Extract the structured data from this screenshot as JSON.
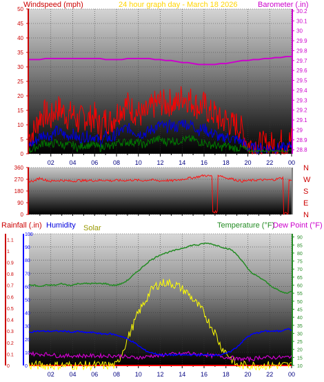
{
  "header": {
    "wind_label": "Windspeed (mph)",
    "title": "24 hour graph day - March 18 2026",
    "baro_label": "Barometer (.in)"
  },
  "bottom_header": {
    "rain_label": "Rainfall (.in)",
    "humidity_label": "Humidity",
    "solar_label": "Solar",
    "temp_label": "Temperature (°F)",
    "dew_label": "Dew Point (°F)"
  },
  "colors": {
    "wind_label": "#cc0000",
    "title": "#ffd400",
    "baro": "#cc00cc",
    "wind_gust": "#ff0000",
    "wind_avg": "#0000dd",
    "wind_low": "#007700",
    "direction": "#ff1010",
    "temperature": "#228b22",
    "humidity": "#0000ff",
    "dew_point": "#cc00cc",
    "solar": "#ffff00",
    "solar_label": "#999900",
    "rain": "#ff0000",
    "temp_axis": "#228b22",
    "humidity_axis": "#0000ff"
  },
  "chart_data": [
    {
      "id": "wind_baro",
      "type": "line",
      "title": "24 hour graph day - March 18 2026",
      "ylabel": "Windspeed (mph)",
      "ylabel_right": "Barometer (.in)",
      "x_tick_labels": [
        "02",
        "04",
        "06",
        "08",
        "10",
        "12",
        "14",
        "16",
        "18",
        "20",
        "22",
        "00"
      ],
      "y_ticks": [
        "0",
        "5",
        "10",
        "15",
        "20",
        "25",
        "30",
        "35",
        "40",
        "45",
        "50"
      ],
      "ylim": [
        0,
        50
      ],
      "y2_ticks": [
        "28.8",
        "28.9",
        "29",
        "29.1",
        "29.2",
        "29.3",
        "29.4",
        "29.5",
        "29.6",
        "29.7",
        "29.8",
        "29.9",
        "30",
        "30.1",
        "30.2"
      ],
      "y2lim": [
        28.76,
        30.22
      ],
      "x": [
        0,
        0.5,
        1,
        1.5,
        2,
        2.5,
        3,
        3.5,
        4,
        4.5,
        5,
        5.5,
        6,
        6.5,
        7,
        7.5,
        8,
        8.5,
        9,
        9.5,
        10,
        10.5,
        11,
        11.5,
        12,
        12.5,
        13,
        13.5,
        14,
        14.5,
        15,
        15.5,
        16,
        16.5,
        17,
        17.5,
        18,
        18.5,
        19,
        19.5,
        20,
        20.5,
        21,
        21.5,
        22,
        22.5,
        23,
        23.5,
        24
      ],
      "series": [
        {
          "name": "Gust",
          "values": [
            6,
            8,
            13,
            14,
            12,
            16,
            15,
            13,
            14,
            11,
            13,
            12,
            13,
            9,
            12,
            11,
            14,
            16,
            17,
            15,
            14,
            13,
            15,
            17,
            18,
            17,
            18,
            17,
            20,
            19,
            18,
            16,
            17,
            14,
            14,
            11,
            12,
            10,
            10,
            8,
            3,
            3,
            3,
            3,
            3,
            3,
            4,
            3,
            5
          ]
        },
        {
          "name": "Average",
          "values": [
            3,
            4,
            6,
            7,
            6,
            8,
            7,
            6,
            7,
            5,
            6,
            6,
            6,
            4,
            6,
            5,
            7,
            8,
            9,
            8,
            7,
            7,
            8,
            9,
            10,
            9,
            10,
            9,
            11,
            10,
            10,
            8,
            9,
            7,
            7,
            5,
            6,
            5,
            5,
            4,
            2,
            2,
            2,
            2,
            2,
            2,
            2,
            2,
            3
          ]
        },
        {
          "name": "Low",
          "values": [
            1,
            2,
            3,
            4,
            3,
            4,
            3,
            3,
            3,
            2,
            3,
            3,
            3,
            2,
            3,
            2,
            4,
            4,
            4,
            4,
            4,
            3,
            4,
            5,
            5,
            4,
            5,
            4,
            5,
            5,
            5,
            4,
            4,
            3,
            3,
            2,
            3,
            2,
            2,
            2,
            1,
            1,
            1,
            1,
            1,
            1,
            1,
            1,
            1
          ]
        },
        {
          "name": "Barometer",
          "values": [
            29.71,
            29.71,
            29.71,
            29.72,
            29.72,
            29.72,
            29.72,
            29.72,
            29.72,
            29.72,
            29.72,
            29.72,
            29.72,
            29.72,
            29.71,
            29.71,
            29.71,
            29.71,
            29.72,
            29.72,
            29.72,
            29.72,
            29.72,
            29.71,
            29.71,
            29.7,
            29.7,
            29.69,
            29.68,
            29.68,
            29.67,
            29.66,
            29.66,
            29.66,
            29.66,
            29.67,
            29.67,
            29.68,
            29.69,
            29.7,
            29.7,
            29.71,
            29.71,
            29.72,
            29.72,
            29.73,
            29.73,
            29.74,
            29.74
          ]
        }
      ]
    },
    {
      "id": "direction",
      "type": "line",
      "y_ticks": [
        "0",
        "90",
        "180",
        "270",
        "360"
      ],
      "ylim": [
        0,
        360
      ],
      "compass_labels": [
        "N",
        "W",
        "S",
        "E",
        "N"
      ],
      "x": [
        0,
        0.5,
        1,
        1.5,
        2,
        2.5,
        3,
        3.5,
        4,
        4.5,
        5,
        5.5,
        6,
        6.5,
        7,
        7.5,
        8,
        8.5,
        9,
        9.5,
        10,
        10.5,
        11,
        11.5,
        12,
        12.5,
        13,
        13.5,
        14,
        14.5,
        15,
        15.5,
        16,
        16.5,
        17,
        17.5,
        18,
        18.5,
        19,
        19.5,
        20,
        20.5,
        21,
        21.5,
        22,
        22.5,
        23,
        23.5,
        24
      ],
      "series": [
        {
          "name": "Direction",
          "values": [
            255,
            258,
            280,
            265,
            255,
            260,
            262,
            258,
            255,
            262,
            258,
            262,
            260,
            262,
            264,
            258,
            262,
            260,
            262,
            265,
            262,
            260,
            266,
            262,
            258,
            262,
            258,
            264,
            270,
            278,
            282,
            290,
            300,
            295,
            20,
            300,
            280,
            275,
            262,
            255,
            260,
            262,
            265,
            265,
            265,
            268,
            280,
            10,
            262
          ]
        }
      ]
    },
    {
      "id": "temp_hum_solar",
      "type": "line",
      "x_tick_labels": [
        "02",
        "04",
        "06",
        "08",
        "10",
        "12",
        "14",
        "16",
        "18",
        "20",
        "22",
        "00"
      ],
      "y_ticks_rain": [
        "0",
        "0.1",
        "0.2",
        "0.3",
        "0.4",
        "0.5",
        "0.6",
        "0.7",
        "0.8",
        "0.9",
        "1",
        "1.1"
      ],
      "ylim_rain": [
        0,
        1.15
      ],
      "y_ticks_humidity": [
        "0",
        "10",
        "20",
        "30",
        "40",
        "50",
        "60",
        "70",
        "80",
        "90",
        "100"
      ],
      "ylim_humidity": [
        0,
        100
      ],
      "y_ticks_temp": [
        "10",
        "15",
        "20",
        "25",
        "30",
        "35",
        "40",
        "45",
        "50",
        "55",
        "60",
        "65",
        "70",
        "75",
        "80",
        "85",
        "90"
      ],
      "ylim_temp": [
        10,
        92
      ],
      "x": [
        0,
        0.5,
        1,
        1.5,
        2,
        2.5,
        3,
        3.5,
        4,
        4.5,
        5,
        5.5,
        6,
        6.5,
        7,
        7.5,
        8,
        8.5,
        9,
        9.5,
        10,
        10.5,
        11,
        11.5,
        12,
        12.5,
        13,
        13.5,
        14,
        14.5,
        15,
        15.5,
        16,
        16.5,
        17,
        17.5,
        18,
        18.5,
        19,
        19.5,
        20,
        20.5,
        21,
        21.5,
        22,
        22.5,
        23,
        23.5,
        24
      ],
      "series": [
        {
          "name": "Temperature",
          "values": [
            60,
            60,
            59,
            60,
            60,
            60,
            61,
            60,
            60,
            61,
            61,
            61,
            61,
            61,
            61,
            60,
            60,
            61,
            63,
            66,
            69,
            72,
            75,
            77,
            79,
            80,
            81,
            82,
            83,
            84,
            85,
            85,
            86,
            86,
            85,
            84,
            83,
            82,
            79,
            75,
            70,
            67,
            65,
            63,
            60,
            58,
            56,
            55,
            56
          ]
        },
        {
          "name": "Humidity",
          "values": [
            25,
            26,
            26,
            26,
            26,
            26,
            26,
            26,
            25,
            26,
            25,
            25,
            25,
            24,
            24,
            24,
            23,
            22,
            20,
            18,
            15,
            12,
            10,
            9,
            8,
            8,
            8,
            8,
            8,
            8,
            8,
            8,
            8,
            8,
            8,
            8,
            9,
            11,
            14,
            18,
            22,
            24,
            25,
            26,
            26,
            26,
            26,
            28,
            27
          ]
        },
        {
          "name": "Dew Point",
          "values": [
            18,
            17,
            17,
            17,
            17,
            16,
            16,
            16,
            16,
            16,
            16,
            16,
            16,
            16,
            16,
            16,
            16,
            16,
            15,
            15,
            15,
            15,
            16,
            16,
            16,
            17,
            17,
            17,
            17,
            18,
            17,
            17,
            17,
            16,
            16,
            16,
            15,
            15,
            14,
            14,
            14,
            14,
            15,
            15,
            15,
            15,
            15,
            15,
            16
          ]
        },
        {
          "name": "Solar",
          "values": [
            0,
            0,
            0,
            0,
            0,
            0,
            0,
            0,
            0,
            0,
            0,
            0,
            0,
            0,
            0,
            0,
            0,
            10,
            20,
            30,
            40,
            47,
            55,
            60,
            62,
            63,
            62,
            61,
            58,
            55,
            50,
            45,
            40,
            32,
            25,
            15,
            10,
            5,
            0,
            0,
            0,
            0,
            0,
            0,
            0,
            0,
            0,
            0,
            0
          ]
        },
        {
          "name": "Rainfall",
          "values": [
            0,
            0,
            0,
            0,
            0,
            0,
            0,
            0,
            0,
            0,
            0,
            0,
            0,
            0,
            0,
            0,
            0,
            0,
            0,
            0,
            0,
            0,
            0,
            0,
            0,
            0,
            0,
            0,
            0,
            0,
            0,
            0,
            0,
            0,
            0,
            0,
            0,
            0,
            0,
            0,
            0,
            0,
            0,
            0,
            0,
            0,
            0,
            0,
            0
          ]
        }
      ]
    }
  ]
}
